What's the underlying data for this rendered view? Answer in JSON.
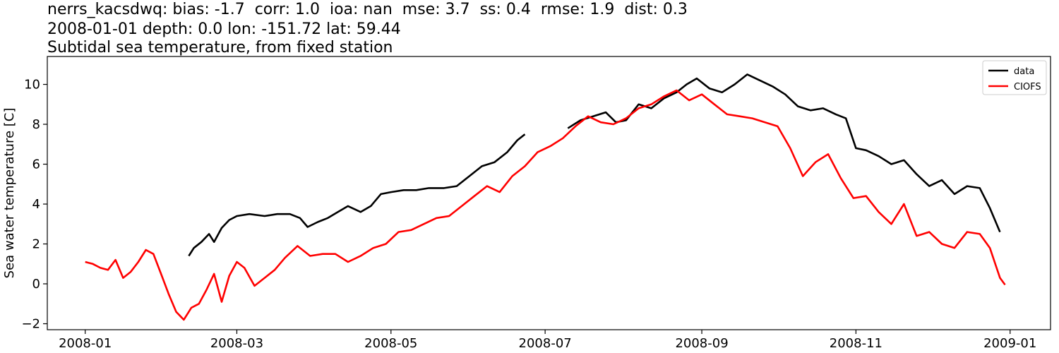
{
  "chart_data": {
    "type": "line",
    "title_lines": [
      "nerrs_kacsdwq: bias: -1.7  corr: 1.0  ioa: nan  mse: 3.7  ss: 0.4  rmse: 1.9  dist: 0.3",
      "2008-01-01 depth: 0.0 lon: -151.72 lat: 59.44",
      "Subtidal sea temperature, from fixed station"
    ],
    "xlabel": "",
    "ylabel": "Sea water temperature [C]",
    "xlim": [
      "2007-12-17",
      "2009-01-17"
    ],
    "ylim": [
      -2.3,
      11.4
    ],
    "x_ticks": [
      {
        "date": "2008-01-01",
        "label": "2008-01"
      },
      {
        "date": "2008-03-01",
        "label": "2008-03"
      },
      {
        "date": "2008-05-01",
        "label": "2008-05"
      },
      {
        "date": "2008-07-01",
        "label": "2008-07"
      },
      {
        "date": "2008-09-01",
        "label": "2008-09"
      },
      {
        "date": "2008-11-01",
        "label": "2008-11"
      },
      {
        "date": "2009-01-01",
        "label": "2009-01"
      }
    ],
    "y_ticks": [
      {
        "value": -2,
        "label": "−2"
      },
      {
        "value": 0,
        "label": "0"
      },
      {
        "value": 2,
        "label": "2"
      },
      {
        "value": 4,
        "label": "4"
      },
      {
        "value": 6,
        "label": "6"
      },
      {
        "value": 8,
        "label": "8"
      },
      {
        "value": 10,
        "label": "10"
      }
    ],
    "grid": false,
    "legend_position": "top-right",
    "series": [
      {
        "name": "data",
        "color": "#000000",
        "segments": [
          [
            [
              "2008-02-11",
              1.4
            ],
            [
              "2008-02-13",
              1.8
            ],
            [
              "2008-02-16",
              2.1
            ],
            [
              "2008-02-19",
              2.5
            ],
            [
              "2008-02-21",
              2.1
            ],
            [
              "2008-02-24",
              2.8
            ],
            [
              "2008-02-27",
              3.2
            ],
            [
              "2008-03-01",
              3.4
            ],
            [
              "2008-03-06",
              3.5
            ],
            [
              "2008-03-12",
              3.4
            ],
            [
              "2008-03-17",
              3.5
            ],
            [
              "2008-03-22",
              3.5
            ],
            [
              "2008-03-26",
              3.3
            ],
            [
              "2008-03-29",
              2.85
            ],
            [
              "2008-04-02",
              3.1
            ],
            [
              "2008-04-06",
              3.3
            ],
            [
              "2008-04-10",
              3.6
            ],
            [
              "2008-04-14",
              3.9
            ],
            [
              "2008-04-19",
              3.6
            ],
            [
              "2008-04-23",
              3.9
            ],
            [
              "2008-04-27",
              4.5
            ],
            [
              "2008-05-01",
              4.6
            ],
            [
              "2008-05-06",
              4.7
            ],
            [
              "2008-05-11",
              4.7
            ],
            [
              "2008-05-16",
              4.8
            ],
            [
              "2008-05-22",
              4.8
            ],
            [
              "2008-05-27",
              4.9
            ],
            [
              "2008-06-01",
              5.4
            ],
            [
              "2008-06-06",
              5.9
            ],
            [
              "2008-06-11",
              6.1
            ],
            [
              "2008-06-16",
              6.6
            ],
            [
              "2008-06-20",
              7.2
            ],
            [
              "2008-06-23",
              7.5
            ]
          ],
          [
            [
              "2008-07-10",
              7.8
            ],
            [
              "2008-07-15",
              8.2
            ],
            [
              "2008-07-20",
              8.4
            ],
            [
              "2008-07-25",
              8.6
            ],
            [
              "2008-07-29",
              8.1
            ],
            [
              "2008-08-02",
              8.2
            ],
            [
              "2008-08-07",
              9.0
            ],
            [
              "2008-08-12",
              8.8
            ],
            [
              "2008-08-17",
              9.3
            ],
            [
              "2008-08-22",
              9.6
            ],
            [
              "2008-08-26",
              10.0
            ],
            [
              "2008-08-30",
              10.3
            ],
            [
              "2008-09-04",
              9.8
            ],
            [
              "2008-09-09",
              9.6
            ],
            [
              "2008-09-14",
              10.0
            ],
            [
              "2008-09-19",
              10.5
            ],
            [
              "2008-09-24",
              10.2
            ],
            [
              "2008-09-29",
              9.9
            ],
            [
              "2008-10-04",
              9.5
            ],
            [
              "2008-10-09",
              8.9
            ],
            [
              "2008-10-14",
              8.7
            ],
            [
              "2008-10-19",
              8.8
            ],
            [
              "2008-10-24",
              8.5
            ],
            [
              "2008-10-28",
              8.3
            ],
            [
              "2008-11-01",
              6.8
            ],
            [
              "2008-11-05",
              6.7
            ],
            [
              "2008-11-10",
              6.4
            ],
            [
              "2008-11-15",
              6.0
            ],
            [
              "2008-11-20",
              6.2
            ],
            [
              "2008-11-25",
              5.5
            ],
            [
              "2008-11-30",
              4.9
            ],
            [
              "2008-12-05",
              5.2
            ],
            [
              "2008-12-10",
              4.5
            ],
            [
              "2008-12-15",
              4.9
            ],
            [
              "2008-12-20",
              4.8
            ],
            [
              "2008-12-24",
              3.8
            ],
            [
              "2008-12-28",
              2.6
            ]
          ]
        ]
      },
      {
        "name": "CIOFS",
        "color": "#ff0000",
        "segments": [
          [
            [
              "2008-01-01",
              1.1
            ],
            [
              "2008-01-04",
              1.0
            ],
            [
              "2008-01-07",
              0.8
            ],
            [
              "2008-01-10",
              0.7
            ],
            [
              "2008-01-13",
              1.2
            ],
            [
              "2008-01-16",
              0.3
            ],
            [
              "2008-01-19",
              0.6
            ],
            [
              "2008-01-22",
              1.1
            ],
            [
              "2008-01-25",
              1.7
            ],
            [
              "2008-01-28",
              1.5
            ],
            [
              "2008-01-31",
              0.5
            ],
            [
              "2008-02-03",
              -0.5
            ],
            [
              "2008-02-06",
              -1.4
            ],
            [
              "2008-02-09",
              -1.8
            ],
            [
              "2008-02-12",
              -1.2
            ],
            [
              "2008-02-15",
              -1.0
            ],
            [
              "2008-02-18",
              -0.3
            ],
            [
              "2008-02-21",
              0.5
            ],
            [
              "2008-02-24",
              -0.9
            ],
            [
              "2008-02-27",
              0.4
            ],
            [
              "2008-03-01",
              1.1
            ],
            [
              "2008-03-04",
              0.8
            ],
            [
              "2008-03-08",
              -0.1
            ],
            [
              "2008-03-12",
              0.3
            ],
            [
              "2008-03-16",
              0.7
            ],
            [
              "2008-03-20",
              1.3
            ],
            [
              "2008-03-25",
              1.9
            ],
            [
              "2008-03-30",
              1.4
            ],
            [
              "2008-04-04",
              1.5
            ],
            [
              "2008-04-09",
              1.5
            ],
            [
              "2008-04-14",
              1.1
            ],
            [
              "2008-04-19",
              1.4
            ],
            [
              "2008-04-24",
              1.8
            ],
            [
              "2008-04-29",
              2.0
            ],
            [
              "2008-05-04",
              2.6
            ],
            [
              "2008-05-09",
              2.7
            ],
            [
              "2008-05-14",
              3.0
            ],
            [
              "2008-05-19",
              3.3
            ],
            [
              "2008-05-24",
              3.4
            ],
            [
              "2008-05-29",
              3.9
            ],
            [
              "2008-06-03",
              4.4
            ],
            [
              "2008-06-08",
              4.9
            ],
            [
              "2008-06-13",
              4.6
            ],
            [
              "2008-06-18",
              5.4
            ],
            [
              "2008-06-23",
              5.9
            ],
            [
              "2008-06-28",
              6.6
            ],
            [
              "2008-07-03",
              6.9
            ],
            [
              "2008-07-08",
              7.3
            ],
            [
              "2008-07-13",
              7.9
            ],
            [
              "2008-07-18",
              8.4
            ],
            [
              "2008-07-23",
              8.1
            ],
            [
              "2008-07-28",
              8.0
            ],
            [
              "2008-08-02",
              8.3
            ],
            [
              "2008-08-07",
              8.8
            ],
            [
              "2008-08-12",
              9.0
            ],
            [
              "2008-08-17",
              9.4
            ],
            [
              "2008-08-22",
              9.7
            ],
            [
              "2008-08-27",
              9.2
            ],
            [
              "2008-09-01",
              9.5
            ],
            [
              "2008-09-06",
              9.0
            ],
            [
              "2008-09-11",
              8.5
            ],
            [
              "2008-09-16",
              8.4
            ],
            [
              "2008-09-21",
              8.3
            ],
            [
              "2008-09-26",
              8.1
            ],
            [
              "2008-10-01",
              7.9
            ],
            [
              "2008-10-06",
              6.8
            ],
            [
              "2008-10-11",
              5.4
            ],
            [
              "2008-10-16",
              6.1
            ],
            [
              "2008-10-21",
              6.5
            ],
            [
              "2008-10-26",
              5.3
            ],
            [
              "2008-10-31",
              4.3
            ],
            [
              "2008-11-05",
              4.4
            ],
            [
              "2008-11-10",
              3.6
            ],
            [
              "2008-11-15",
              3.0
            ],
            [
              "2008-11-20",
              4.0
            ],
            [
              "2008-11-25",
              2.4
            ],
            [
              "2008-11-30",
              2.6
            ],
            [
              "2008-12-05",
              2.0
            ],
            [
              "2008-12-10",
              1.8
            ],
            [
              "2008-12-15",
              2.6
            ],
            [
              "2008-12-20",
              2.5
            ],
            [
              "2008-12-24",
              1.8
            ],
            [
              "2008-12-28",
              0.3
            ],
            [
              "2008-12-30",
              -0.05
            ]
          ]
        ]
      }
    ]
  }
}
